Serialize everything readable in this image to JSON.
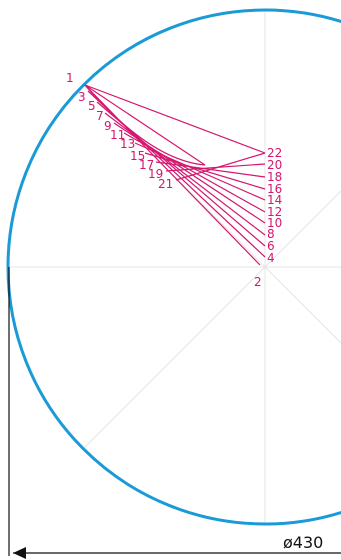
{
  "colors": {
    "circle": "#1a9ad6",
    "lines": "#d4176f",
    "guides": "#e4e4e4",
    "dimension": "#111111"
  },
  "labels": {
    "p1": "1",
    "p2": "2",
    "p3": "3",
    "p4": "4",
    "p5": "5",
    "p6": "6",
    "p7": "7",
    "p8": "8",
    "p9": "9",
    "p10": "10",
    "p11": "11",
    "p12": "12",
    "p13": "13",
    "p14": "14",
    "p15": "15",
    "p16": "16",
    "p17": "17",
    "p18": "18",
    "p19": "19",
    "p20": "20",
    "p21": "21",
    "p22": "22"
  },
  "dimension": {
    "label": "ø430"
  }
}
